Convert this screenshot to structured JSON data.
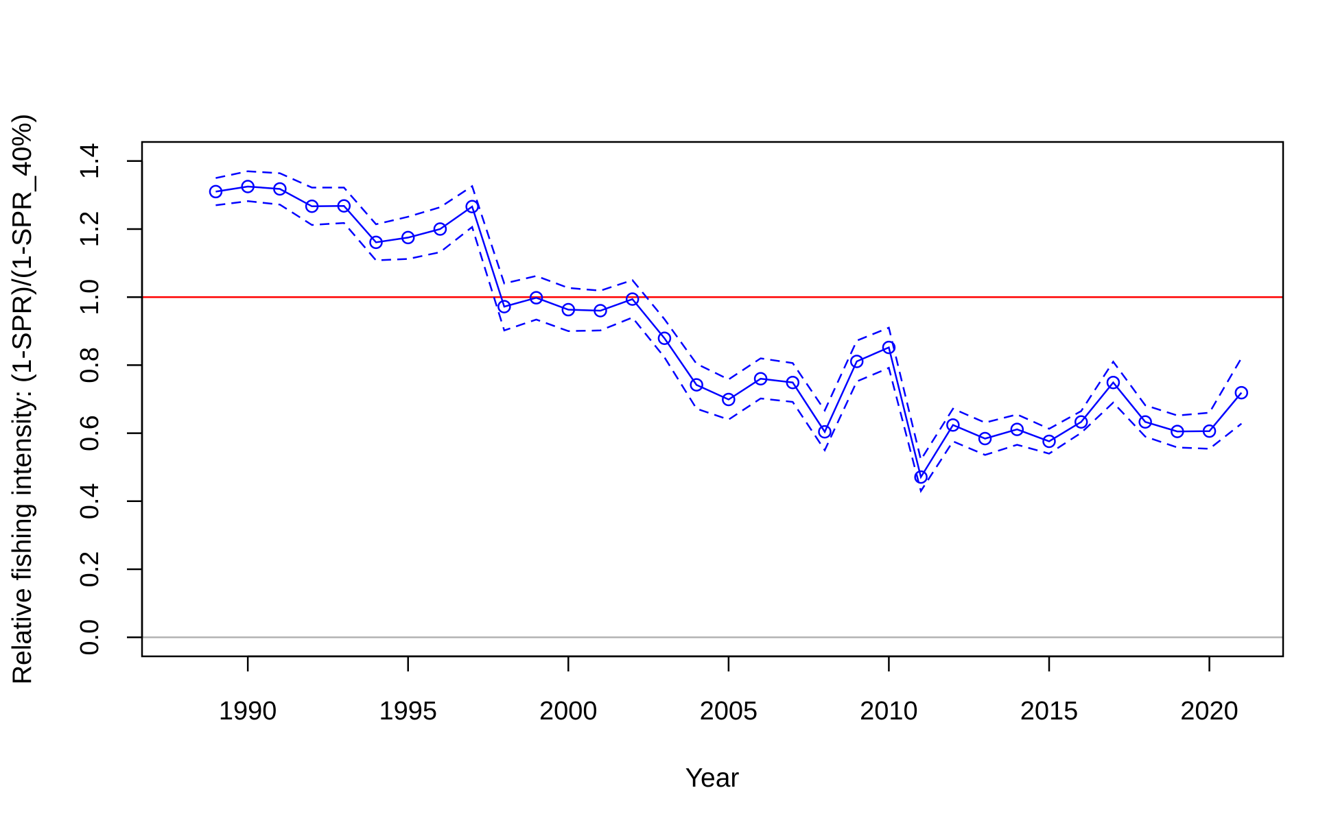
{
  "chart_data": {
    "type": "line",
    "title": "",
    "xlabel": "Year",
    "ylabel": "Relative fishing intensity: (1-SPR)/(1-SPR_40%)",
    "xlim": [
      1986.7,
      2022.3
    ],
    "ylim": [
      -0.056,
      1.456
    ],
    "x_ticks": [
      "1990",
      "1995",
      "2000",
      "2005",
      "2010",
      "2015",
      "2020"
    ],
    "y_ticks": [
      "0.0",
      "0.2",
      "0.4",
      "0.6",
      "0.8",
      "1.0",
      "1.2",
      "1.4"
    ],
    "grid": false,
    "legend": "none",
    "x": [
      1989,
      1990,
      1991,
      1992,
      1993,
      1994,
      1995,
      1996,
      1997,
      1998,
      1999,
      2000,
      2001,
      2002,
      2003,
      2004,
      2005,
      2006,
      2007,
      2008,
      2009,
      2010,
      2011,
      2012,
      2013,
      2014,
      2015,
      2016,
      2017,
      2018,
      2019,
      2020,
      2021
    ],
    "series": [
      {
        "role": "estimate",
        "color": "#0000ff",
        "style": "solid-with-circles",
        "values": [
          1.31,
          1.325,
          1.318,
          1.267,
          1.268,
          1.161,
          1.175,
          1.2,
          1.266,
          0.972,
          0.998,
          0.963,
          0.96,
          0.994,
          0.879,
          0.742,
          0.699,
          0.76,
          0.749,
          0.604,
          0.811,
          0.852,
          0.471,
          0.624,
          0.584,
          0.611,
          0.576,
          0.633,
          0.749,
          0.633,
          0.605,
          0.606,
          0.719
        ]
      },
      {
        "role": "upper",
        "color": "#0000ff",
        "style": "dashed",
        "values": [
          1.35,
          1.37,
          1.364,
          1.322,
          1.322,
          1.214,
          1.236,
          1.264,
          1.326,
          1.04,
          1.062,
          1.027,
          1.019,
          1.05,
          0.935,
          0.804,
          0.758,
          0.82,
          0.806,
          0.667,
          0.872,
          0.91,
          0.522,
          0.672,
          0.631,
          0.655,
          0.613,
          0.665,
          0.81,
          0.682,
          0.652,
          0.66,
          0.821
        ]
      },
      {
        "role": "lower",
        "color": "#0000ff",
        "style": "dashed",
        "values": [
          1.27,
          1.282,
          1.272,
          1.212,
          1.218,
          1.108,
          1.112,
          1.132,
          1.206,
          0.902,
          0.934,
          0.9,
          0.902,
          0.94,
          0.823,
          0.672,
          0.64,
          0.702,
          0.692,
          0.55,
          0.752,
          0.792,
          0.43,
          0.576,
          0.536,
          0.566,
          0.54,
          0.601,
          0.69,
          0.59,
          0.558,
          0.554,
          0.628
        ]
      }
    ],
    "reference_lines": [
      {
        "y": 1.0,
        "color": "#ff0000"
      },
      {
        "y": 0.0,
        "color": "#b3b3b3"
      }
    ]
  }
}
